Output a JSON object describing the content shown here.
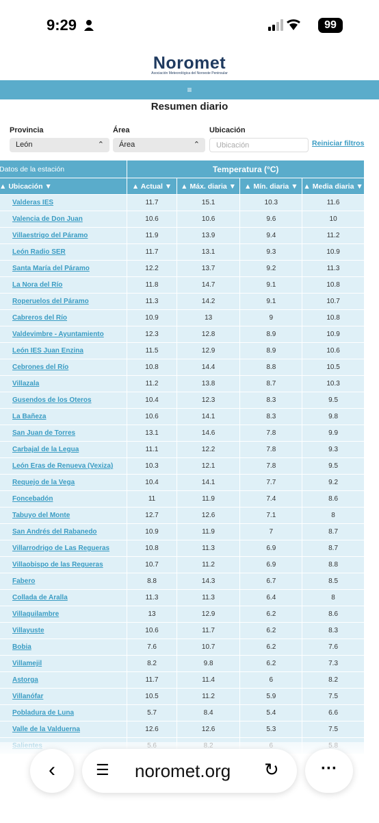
{
  "status_bar": {
    "time": "9:29",
    "battery": "99"
  },
  "header": {
    "logo": "Noromet",
    "subtitle": "Asociación Meteorológica del Noroeste Peninsular"
  },
  "title": "Resumen diario",
  "filters": {
    "province_label": "Provincia",
    "province_value": "León",
    "area_label": "Área",
    "area_value": "Área",
    "location_label": "Ubicación",
    "location_placeholder": "Ubicación",
    "reset": "Reiniciar filtros"
  },
  "table": {
    "group_headers": [
      "Datos de la estación",
      "Temperatura (°C)"
    ],
    "columns": [
      "Ubicación",
      "Actual",
      "Máx. diaria",
      "Mín. diaria",
      "Media diaria"
    ],
    "rows": [
      [
        "Valderas IES",
        11.7,
        15.1,
        10.3,
        11.6
      ],
      [
        "Valencia de Don Juan",
        10.6,
        10.6,
        9.6,
        10
      ],
      [
        "Villaestrigo del Páramo",
        11.9,
        13.9,
        9.4,
        11.2
      ],
      [
        "León Radio SER",
        11.7,
        13.1,
        9.3,
        10.9
      ],
      [
        "Santa María del Páramo",
        12.2,
        13.7,
        9.2,
        11.3
      ],
      [
        "La Nora del Río",
        11.8,
        14.7,
        9.1,
        10.8
      ],
      [
        "Roperuelos del Páramo",
        11.3,
        14.2,
        9.1,
        10.7
      ],
      [
        "Cabreros del Río",
        10.9,
        13,
        9,
        10.8
      ],
      [
        "Valdevimbre - Ayuntamiento",
        12.3,
        12.8,
        8.9,
        10.9
      ],
      [
        "León IES Juan Enzina",
        11.5,
        12.9,
        8.9,
        10.6
      ],
      [
        "Cebrones del Río",
        10.8,
        14.4,
        8.8,
        10.5
      ],
      [
        "Villazala",
        11.2,
        13.8,
        8.7,
        10.3
      ],
      [
        "Gusendos de los Oteros",
        10.4,
        12.3,
        8.3,
        9.5
      ],
      [
        "La Bañeza",
        10.6,
        14.1,
        8.3,
        9.8
      ],
      [
        "San Juan de Torres",
        13.1,
        14.6,
        7.8,
        9.9
      ],
      [
        "Carbajal de la Legua",
        11.1,
        12.2,
        7.8,
        9.3
      ],
      [
        "León Eras de Renueva (Vexiza)",
        10.3,
        12.1,
        7.8,
        9.5
      ],
      [
        "Requejo de la Vega",
        10.4,
        14.1,
        7.7,
        9.2
      ],
      [
        "Foncebadón",
        11,
        11.9,
        7.4,
        8.6
      ],
      [
        "Tabuyo del Monte",
        12.7,
        12.6,
        7.1,
        8
      ],
      [
        "San Andrés del Rabanedo",
        10.9,
        11.9,
        7,
        8.7
      ],
      [
        "Villarrodrigo de Las Regueras",
        10.8,
        11.3,
        6.9,
        8.7
      ],
      [
        "Villaobispo de las Regueras",
        10.7,
        11.2,
        6.9,
        8.8
      ],
      [
        "Fabero",
        8.8,
        14.3,
        6.7,
        8.5
      ],
      [
        "Collada de Aralla",
        11.3,
        11.3,
        6.4,
        8
      ],
      [
        "Villaquilambre",
        13,
        12.9,
        6.2,
        8.6
      ],
      [
        "Villayuste",
        10.6,
        11.7,
        6.2,
        8.3
      ],
      [
        "Bobia",
        7.6,
        10.7,
        6.2,
        7.6
      ],
      [
        "Villamejil",
        8.2,
        9.8,
        6.2,
        7.3
      ],
      [
        "Astorga",
        11.7,
        11.4,
        6,
        8.2
      ],
      [
        "Villanófar",
        10.5,
        11.2,
        5.9,
        7.5
      ],
      [
        "Pobladura de Luna",
        5.7,
        8.4,
        5.4,
        6.6
      ],
      [
        "Valle de la Valduerna",
        12.6,
        12.6,
        5.3,
        7.5
      ],
      [
        "Salientes",
        5.6,
        8.2,
        6,
        5.8
      ]
    ]
  },
  "browser": {
    "url": "noromet.org"
  }
}
